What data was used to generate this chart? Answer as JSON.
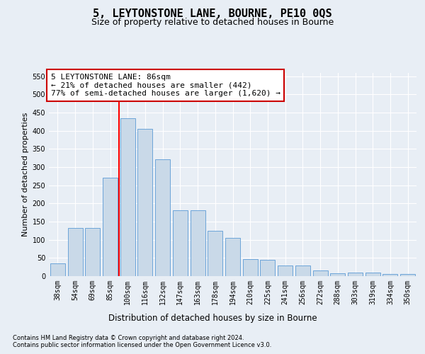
{
  "title1": "5, LEYTONSTONE LANE, BOURNE, PE10 0QS",
  "title2": "Size of property relative to detached houses in Bourne",
  "xlabel": "Distribution of detached houses by size in Bourne",
  "ylabel": "Number of detached properties",
  "footer1": "Contains HM Land Registry data © Crown copyright and database right 2024.",
  "footer2": "Contains public sector information licensed under the Open Government Licence v3.0.",
  "annotation_line1": "5 LEYTONSTONE LANE: 86sqm",
  "annotation_line2": "← 21% of detached houses are smaller (442)",
  "annotation_line3": "77% of semi-detached houses are larger (1,620) →",
  "bar_labels": [
    "38sqm",
    "54sqm",
    "69sqm",
    "85sqm",
    "100sqm",
    "116sqm",
    "132sqm",
    "147sqm",
    "163sqm",
    "178sqm",
    "194sqm",
    "210sqm",
    "225sqm",
    "241sqm",
    "256sqm",
    "272sqm",
    "288sqm",
    "303sqm",
    "319sqm",
    "334sqm",
    "350sqm"
  ],
  "bar_values": [
    35,
    133,
    133,
    270,
    435,
    405,
    322,
    182,
    182,
    125,
    105,
    47,
    45,
    30,
    30,
    15,
    7,
    10,
    10,
    5,
    5
  ],
  "bar_color": "#c9d9e8",
  "bar_edge_color": "#5b9bd5",
  "red_line_index": 3.5,
  "ylim": [
    0,
    560
  ],
  "yticks": [
    0,
    50,
    100,
    150,
    200,
    250,
    300,
    350,
    400,
    450,
    500,
    550
  ],
  "bg_color": "#e8eef5",
  "plot_bg": "#e8eef5",
  "grid_color": "white",
  "annotation_box_facecolor": "white",
  "annotation_box_edge": "#cc0000",
  "title1_fontsize": 11,
  "title2_fontsize": 9,
  "xlabel_fontsize": 8.5,
  "ylabel_fontsize": 8,
  "tick_fontsize": 7,
  "annotation_fontsize": 8,
  "footer_fontsize": 6
}
